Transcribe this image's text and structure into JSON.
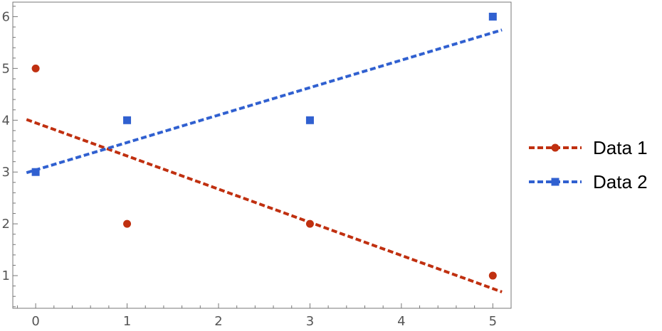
{
  "chart_data": {
    "type": "scatter",
    "x_ticks": [
      0,
      1,
      2,
      3,
      4,
      5
    ],
    "y_ticks": [
      1,
      2,
      3,
      4,
      5,
      6
    ],
    "xlim": [
      -0.25,
      5.2
    ],
    "ylim": [
      0.37,
      6.28
    ],
    "grid": false,
    "legend_position": "right",
    "series": [
      {
        "name": "Data 1",
        "color": "#c03010",
        "marker": "circle",
        "points": [
          [
            0,
            5
          ],
          [
            1,
            2
          ],
          [
            3,
            2
          ],
          [
            5,
            1
          ]
        ],
        "fit_line": {
          "intercept": 3.95,
          "slope": -0.64,
          "x_range": [
            -0.1,
            5.1
          ],
          "style": "dashed"
        }
      },
      {
        "name": "Data 2",
        "color": "#3060d0",
        "marker": "square",
        "points": [
          [
            0,
            3
          ],
          [
            1,
            4
          ],
          [
            3,
            4
          ],
          [
            5,
            6
          ]
        ],
        "fit_line": {
          "intercept": 3.04,
          "slope": 0.53,
          "x_range": [
            -0.1,
            5.1
          ],
          "style": "dashed"
        }
      }
    ]
  }
}
